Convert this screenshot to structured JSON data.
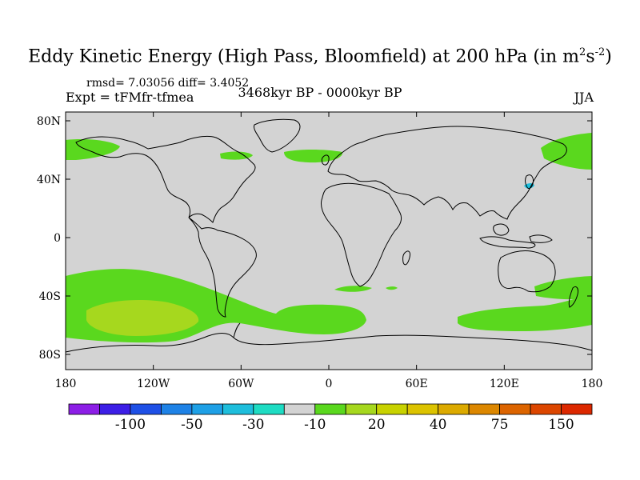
{
  "title": {
    "main": "Eddy Kinetic Energy (High Pass, Bloomfield) at 200 hPa (in m",
    "sup1": "2",
    "mid": "s",
    "sup2": "-2",
    "end": ")"
  },
  "stats": "rmsd= 7.03056 diff= 3.4052",
  "experiment": "Expt = tFMfr-tfmea",
  "period": "3468kyr BP - 0000kyr BP",
  "season": "JJA",
  "map": {
    "lat_labels": [
      "80N",
      "40N",
      "0",
      "40S",
      "80S"
    ],
    "lon_labels": [
      "180",
      "120W",
      "60W",
      "0",
      "60E",
      "120E",
      "180"
    ],
    "background_color": "#d3d3d3",
    "coastline_color": "#000000"
  },
  "colorbar": {
    "colors": [
      "#8c1ee6",
      "#3c1ee6",
      "#1e50e6",
      "#1e82e6",
      "#1ea0e6",
      "#1ebedc",
      "#1edcc3",
      "#d3d3d3",
      "#5ad81e",
      "#a6d81e",
      "#c8d200",
      "#dcc300",
      "#dcaa00",
      "#dc8700",
      "#dc6400",
      "#dc4600",
      "#dc2800"
    ],
    "labels": [
      "-100",
      "-50",
      "-30",
      "-10",
      "20",
      "40",
      "75",
      "150"
    ]
  },
  "anomaly_colors": {
    "green": "#5ad81e",
    "yellow_green": "#a6d81e",
    "cyan": "#1ebedc"
  }
}
